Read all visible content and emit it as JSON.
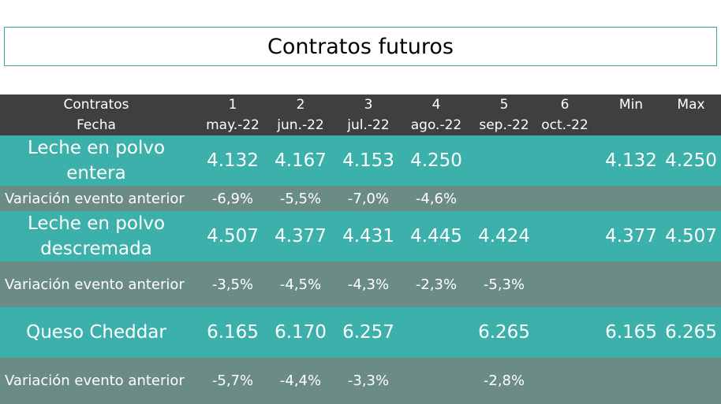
{
  "title": "Contratos futuros",
  "header": {
    "row1_label": "Contratos",
    "row2_label": "Fecha",
    "contracts": [
      {
        "num": "1",
        "date": "may.-22"
      },
      {
        "num": "2",
        "date": "jun.-22"
      },
      {
        "num": "3",
        "date": "jul.-22"
      },
      {
        "num": "4",
        "date": "ago.-22"
      },
      {
        "num": "5",
        "date": "sep.-22"
      },
      {
        "num": "6",
        "date": "oct.-22"
      }
    ],
    "min_label": "Min",
    "max_label": "Max"
  },
  "rows": [
    {
      "label_line1": "Leche en polvo",
      "label_line2": "entera",
      "values": [
        "4.132",
        "4.167",
        "4.153",
        "4.250",
        "",
        ""
      ],
      "min": "4.132",
      "max": "4.250"
    },
    {
      "label": "Variación evento anterior",
      "values": [
        "-6,9%",
        "-5,5%",
        "-7,0%",
        "-4,6%",
        "",
        ""
      ]
    },
    {
      "label_line1": "Leche en polvo",
      "label_line2": "descremada",
      "values": [
        "4.507",
        "4.377",
        "4.431",
        "4.445",
        "4.424",
        ""
      ],
      "min": "4.377",
      "max": "4.507"
    },
    {
      "label": "Variación evento anterior",
      "values": [
        "-3,5%",
        "-4,5%",
        "-4,3%",
        "-2,3%",
        "-5,3%",
        ""
      ]
    },
    {
      "label_line1": "Queso Cheddar",
      "values": [
        "6.165",
        "6.170",
        "6.257",
        "",
        "6.265",
        ""
      ],
      "min": "6.165",
      "max": "6.265"
    },
    {
      "label": "Variación evento anterior",
      "values": [
        "-5,7%",
        "-4,4%",
        "-3,3%",
        "",
        "-2,8%",
        ""
      ]
    }
  ],
  "colors": {
    "header_bg": "#3f3f3f",
    "product_bg": "#3cb0aa",
    "variation_bg": "#6b8c85",
    "title_border": "#3aa9a6"
  }
}
